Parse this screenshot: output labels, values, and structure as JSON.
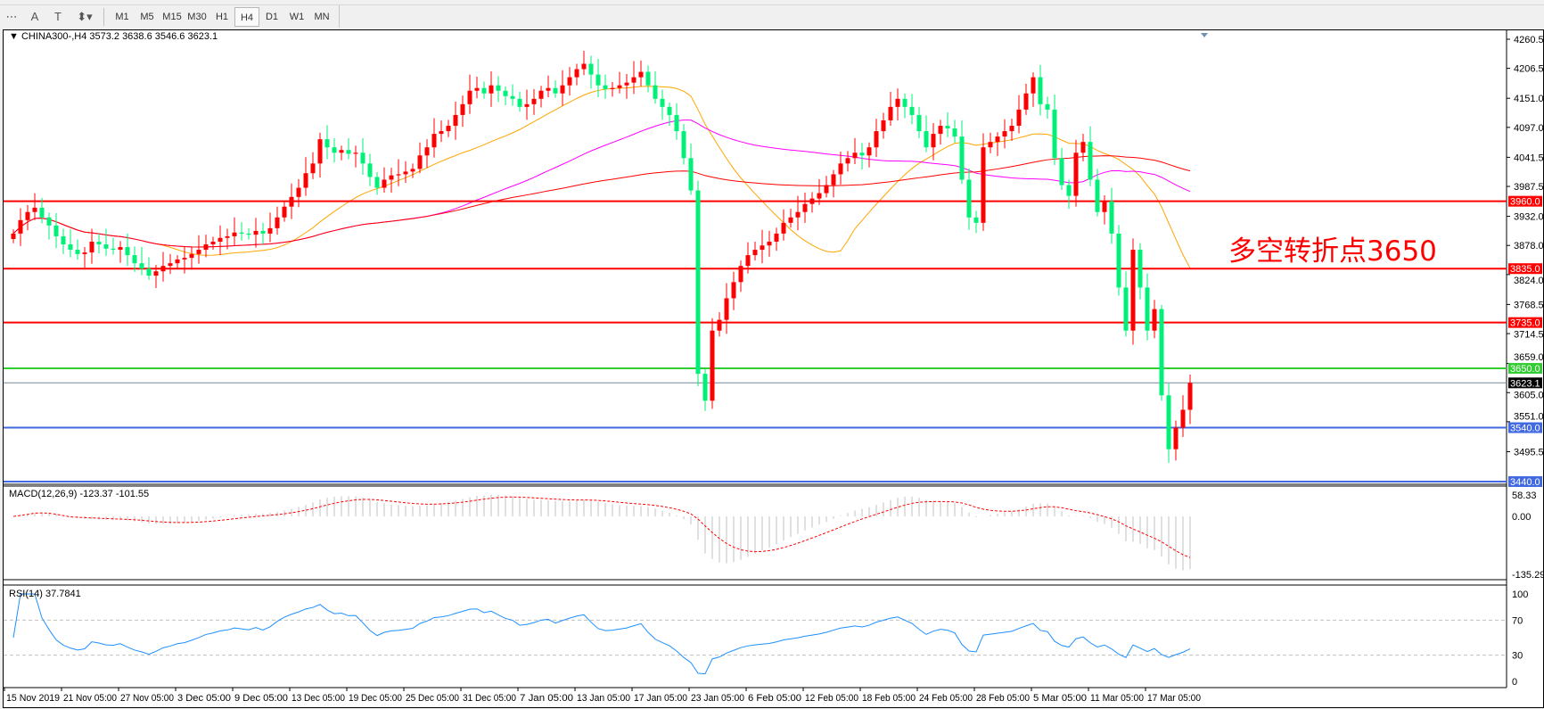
{
  "toolbar": {
    "icons": [
      "grid-f-icon",
      "text-a-icon",
      "text-label-icon",
      "arrows-icon"
    ],
    "timeframes": [
      "M1",
      "M5",
      "M15",
      "M30",
      "H1",
      "H4",
      "D1",
      "W1",
      "MN"
    ],
    "selected_timeframe": "H4"
  },
  "chart": {
    "header": "CHINA300-,H4  3573.2 3638.6 3546.6 3623.1",
    "annotation": "多空转折点3650",
    "colors": {
      "bull": "#ff0000",
      "bear": "#00f07a",
      "ma_fast": "#ffa500",
      "ma_mid": "#ff00ff",
      "ma_slow": "#ff0000",
      "macd_hist": "#c0c0c0",
      "macd_signal": "#ff0000",
      "rsi": "#1e90ff"
    }
  },
  "chart_data": {
    "type": "candlestick",
    "symbol": "CHINA300-",
    "timeframe": "H4",
    "last_bar": {
      "open": 3573.2,
      "high": 3638.6,
      "low": 3546.6,
      "close": 3623.1
    },
    "ylim": [
      3440,
      4260.5
    ],
    "price_ticks": [
      "4260.5",
      "4206.5",
      "4151.0",
      "4097.0",
      "4041.5",
      "3987.5",
      "3932.0",
      "3878.0",
      "3824.0",
      "3768.5",
      "3714.5",
      "3659.0",
      "3605.0",
      "3551.0",
      "3495.5"
    ],
    "levels": [
      {
        "price": 3960.0,
        "label": "3960.0",
        "color": "#ff0000"
      },
      {
        "price": 3835.0,
        "label": "3835.0",
        "color": "#ff0000"
      },
      {
        "price": 3735.0,
        "label": "3735.0",
        "color": "#ff0000"
      },
      {
        "price": 3650.0,
        "label": "3650.0",
        "color": "#32cd32"
      },
      {
        "price": 3623.1,
        "label": "3623.1",
        "color": "#778899",
        "label_bg": "#000000"
      },
      {
        "price": 3540.0,
        "label": "3540.0",
        "color": "#4169e1"
      },
      {
        "price": 3440.0,
        "label": "3440.0",
        "color": "#4169e1"
      }
    ],
    "closes": [
      3900,
      3925,
      3940,
      3948,
      3930,
      3915,
      3895,
      3880,
      3870,
      3862,
      3865,
      3885,
      3880,
      3872,
      3870,
      3875,
      3860,
      3845,
      3835,
      3822,
      3830,
      3840,
      3845,
      3852,
      3855,
      3862,
      3870,
      3880,
      3885,
      3892,
      3895,
      3902,
      3900,
      3898,
      3905,
      3900,
      3910,
      3930,
      3950,
      3968,
      3985,
      4012,
      4030,
      4075,
      4060,
      4050,
      4055,
      4048,
      4050,
      4030,
      4005,
      3985,
      4000,
      4008,
      4010,
      4015,
      4020,
      4045,
      4060,
      4085,
      4090,
      4100,
      4120,
      4140,
      4165,
      4170,
      4160,
      4175,
      4165,
      4155,
      4150,
      4135,
      4140,
      4150,
      4165,
      4170,
      4160,
      4175,
      4190,
      4205,
      4215,
      4195,
      4175,
      4168,
      4170,
      4175,
      4180,
      4190,
      4200,
      4175,
      4150,
      4135,
      4120,
      4090,
      4040,
      3980,
      3640,
      3590,
      3720,
      3740,
      3780,
      3810,
      3840,
      3860,
      3870,
      3878,
      3885,
      3900,
      3920,
      3930,
      3940,
      3955,
      3965,
      3975,
      3990,
      4010,
      4030,
      4040,
      4050,
      4045,
      4060,
      4090,
      4110,
      4135,
      4150,
      4135,
      4120,
      4090,
      4060,
      4085,
      4100,
      4095,
      4080,
      4000,
      3930,
      3920,
      4060,
      4070,
      4080,
      4090,
      4100,
      4130,
      4160,
      4190,
      4140,
      4130,
      4040,
      3990,
      3970,
      4050,
      4070,
      4000,
      3940,
      3960,
      3900,
      3800,
      3720,
      3870,
      3800,
      3720,
      3760,
      3600,
      3500,
      3540,
      3573.2,
      3623.1
    ],
    "time_labels": [
      "15 Nov 2019",
      "21 Nov 05:00",
      "27 Nov 05:00",
      "3 Dec 05:00",
      "9 Dec 05:00",
      "13 Dec 05:00",
      "19 Dec 05:00",
      "25 Dec 05:00",
      "31 Dec 05:00",
      "7 Jan 05:00",
      "13 Jan 05:00",
      "17 Jan 05:00",
      "23 Jan 05:00",
      "6 Feb 05:00",
      "12 Feb 05:00",
      "18 Feb 05:00",
      "24 Feb 05:00",
      "28 Feb 05:00",
      "5 Mar 05:00",
      "11 Mar 05:00",
      "17 Mar 05:00"
    ],
    "macd": {
      "label": "MACD(12,26,9) -123.37 -101.55",
      "ticks": [
        "58.33",
        "0.00",
        "-135.29"
      ],
      "range": [
        -135.29,
        58.33
      ]
    },
    "rsi": {
      "label": "RSI(14) 37.7841",
      "ticks": [
        "100",
        "70",
        "30",
        "0"
      ],
      "levels": [
        70,
        30
      ]
    }
  }
}
